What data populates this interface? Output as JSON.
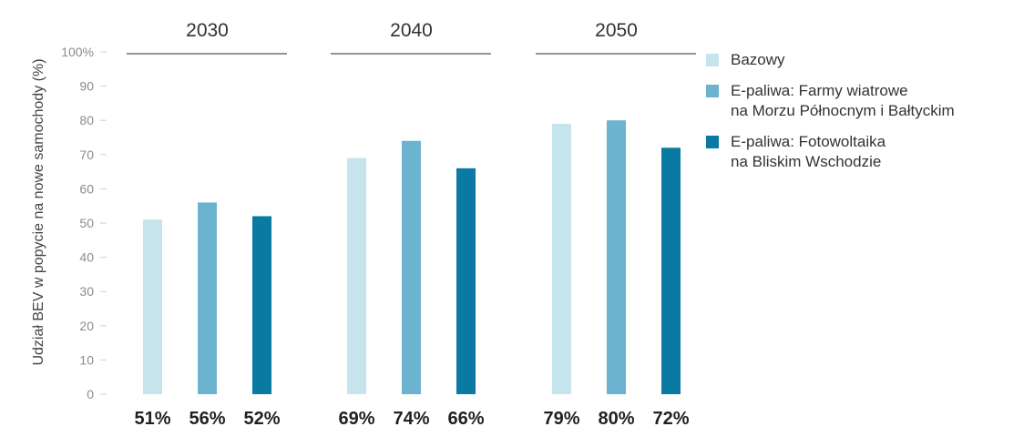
{
  "chart_data": {
    "type": "bar",
    "ylabel": "Udział BEV w popycie na nowe samochody (%)",
    "ylim": [
      0,
      100
    ],
    "y_ticks": [
      "0",
      "10",
      "20",
      "30",
      "40",
      "50",
      "60",
      "70",
      "80",
      "90",
      "100%"
    ],
    "groups": [
      "2030",
      "2040",
      "2050"
    ],
    "grid": false,
    "legend_position": "right",
    "series": [
      {
        "name": "Bazowy",
        "color": "#c5e4ec",
        "values": [
          51,
          69,
          79
        ]
      },
      {
        "name": "E-paliwa: Farmy wiatrowe na Morzu Północnym i Bałtyckim",
        "color": "#6bb3cf",
        "values": [
          56,
          74,
          80
        ]
      },
      {
        "name": "E-paliwa: Fotowoltaika na Bliskim Wschodzie",
        "color": "#0a7aa3",
        "values": [
          52,
          66,
          72
        ]
      }
    ],
    "value_labels": [
      [
        "51%",
        "69%",
        "79%"
      ],
      [
        "56%",
        "74%",
        "80%"
      ],
      [
        "52%",
        "66%",
        "72%"
      ]
    ]
  },
  "legend": [
    {
      "color": "#c5e4ec",
      "lines": [
        "Bazowy"
      ]
    },
    {
      "color": "#6bb3cf",
      "lines": [
        "E-paliwa: Farmy wiatrowe",
        "na Morzu Północnym i Bałtyckim"
      ]
    },
    {
      "color": "#0a7aa3",
      "lines": [
        "E-paliwa: Fotowoltaika",
        "na Bliskim Wschodzie"
      ]
    }
  ]
}
